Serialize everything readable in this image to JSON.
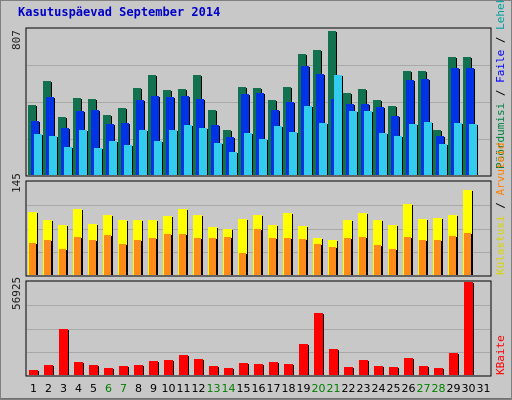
{
  "title": "Kasutuspäevad September 2014",
  "colors": {
    "visits": "#127250",
    "pages": "#0033e6",
    "files": "#33ccee",
    "hits": "#ffff00",
    "bytes": "#ff0000",
    "ttl_red": "#ff0000",
    "ttl_orange": "#ff8000",
    "ttl_yellow": "#d6d600",
    "ttl_teal": "#00a0a0",
    "ttl_blue": "#0000ff",
    "ttl_green": "#008040",
    "weekend_label": "#008000"
  },
  "legend": {
    "top": [
      {
        "text": "Pöördumisi",
        "color_key": "ttl_green"
      },
      {
        "text": " / ",
        "color_key": "sep"
      },
      {
        "text": "Faile",
        "color_key": "ttl_blue"
      },
      {
        "text": " / ",
        "color_key": "sep"
      },
      {
        "text": "Lehekülgi",
        "color_key": "ttl_teal"
      }
    ],
    "middle": [
      {
        "text": "Külastusi",
        "color_key": "ttl_yellow"
      },
      {
        "text": " / ",
        "color_key": "sep"
      },
      {
        "text": "Arvuteid",
        "color_key": "ttl_orange"
      }
    ],
    "bottom": [
      {
        "text": "KBaite",
        "color_key": "ttl_red"
      }
    ]
  },
  "chart_data": [
    {
      "type": "bar",
      "panel": "top",
      "ymax_label": "807",
      "ylim": [
        0,
        807
      ],
      "categories": [
        "1",
        "2",
        "3",
        "4",
        "5",
        "6",
        "7",
        "8",
        "9",
        "10",
        "11",
        "12",
        "13",
        "14",
        "15",
        "16",
        "17",
        "18",
        "19",
        "20",
        "21",
        "22",
        "23",
        "24",
        "25",
        "26",
        "27",
        "28",
        "29",
        "30",
        "31"
      ],
      "weekend_days": [
        6,
        7,
        13,
        14,
        20,
        21,
        27,
        28
      ],
      "series": [
        {
          "name": "Pöördumisi",
          "key": "visits",
          "values": [
            385,
            519,
            321,
            425,
            421,
            333,
            373,
            480,
            555,
            468,
            478,
            550,
            357,
            246,
            485,
            479,
            417,
            486,
            667,
            689,
            798,
            451,
            474,
            412,
            380,
            575,
            573,
            251,
            654,
            652,
            0
          ]
        },
        {
          "name": "Faile",
          "key": "pages",
          "values": [
            301,
            431,
            260,
            351,
            359,
            283,
            290,
            412,
            438,
            431,
            435,
            421,
            276,
            211,
            446,
            453,
            361,
            406,
            604,
            558,
            420,
            392,
            394,
            375,
            326,
            526,
            529,
            217,
            592,
            590,
            0
          ]
        },
        {
          "name": "Lehekülgi",
          "key": "files",
          "values": [
            229,
            213,
            153,
            249,
            150,
            189,
            164,
            248,
            189,
            246,
            276,
            259,
            177,
            128,
            232,
            200,
            270,
            237,
            381,
            289,
            553,
            356,
            351,
            230,
            216,
            283,
            292,
            171,
            289,
            283,
            0
          ]
        }
      ]
    },
    {
      "type": "bar",
      "panel": "middle",
      "ymax_label": "145",
      "ylim": [
        0,
        145
      ],
      "categories": [
        "1",
        "2",
        "3",
        "4",
        "5",
        "6",
        "7",
        "8",
        "9",
        "10",
        "11",
        "12",
        "13",
        "14",
        "15",
        "16",
        "17",
        "18",
        "19",
        "20",
        "21",
        "22",
        "23",
        "24",
        "25",
        "26",
        "27",
        "28",
        "29",
        "30",
        "31"
      ],
      "series": [
        {
          "name": "Külastusi",
          "key": "hits",
          "values": [
            98,
            86,
            78,
            103,
            80,
            93,
            85,
            86,
            85,
            92,
            103,
            94,
            75,
            71,
            88,
            94,
            78,
            96,
            76,
            57,
            54,
            86,
            96,
            86,
            78,
            111,
            88,
            89,
            93,
            132,
            0
          ]
        },
        {
          "name": "Arvuteid",
          "key": "pages2",
          "values": [
            50,
            54,
            40,
            60,
            54,
            62,
            48,
            54,
            58,
            64,
            64,
            58,
            57,
            60,
            35,
            71,
            57,
            58,
            56,
            49,
            43,
            58,
            60,
            46,
            40,
            60,
            54,
            55,
            61,
            65,
            0
          ]
        }
      ]
    },
    {
      "type": "bar",
      "panel": "bottom",
      "ymax_label": "56925",
      "ylim": [
        0,
        56925
      ],
      "categories": [
        "1",
        "2",
        "3",
        "4",
        "5",
        "6",
        "7",
        "8",
        "9",
        "10",
        "11",
        "12",
        "13",
        "14",
        "15",
        "16",
        "17",
        "18",
        "19",
        "20",
        "21",
        "22",
        "23",
        "24",
        "25",
        "26",
        "27",
        "28",
        "29",
        "30",
        "31"
      ],
      "series": [
        {
          "name": "KBaite",
          "key": "bytes",
          "values": [
            3000,
            6400,
            28400,
            7700,
            6300,
            4000,
            5600,
            6000,
            8300,
            9000,
            12300,
            9700,
            5700,
            4000,
            7600,
            6800,
            7800,
            6700,
            18900,
            37800,
            16200,
            4600,
            9300,
            5300,
            5000,
            10100,
            5400,
            4400,
            13700,
            56925,
            0
          ]
        }
      ]
    }
  ]
}
